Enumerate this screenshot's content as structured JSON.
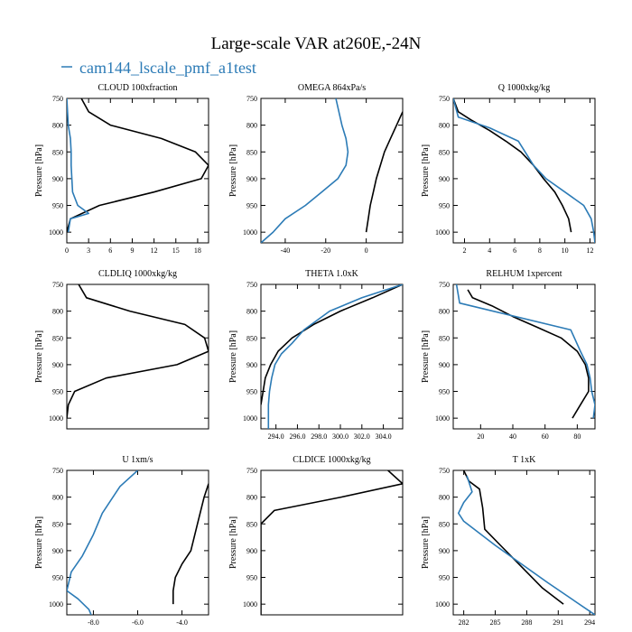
{
  "figure": {
    "title": "Large-scale VAR at260E,-24N",
    "legend_label": "cam144_lscale_pmf_a1test",
    "legend_color": "#2c7bb6",
    "ref_color": "#000000",
    "ylabel": "Pressure [hPa]",
    "yticks": [
      750,
      800,
      850,
      900,
      950,
      1000
    ]
  },
  "chart_data": [
    {
      "type": "line",
      "title": "CLOUD  100xfraction",
      "xlim": [
        0,
        19.5
      ],
      "ylim": [
        750,
        1020
      ],
      "xticks": [
        {
          "v": 0,
          "t": "0"
        },
        {
          "v": 3,
          "t": "3"
        },
        {
          "v": 6,
          "t": "6"
        },
        {
          "v": 9,
          "t": "9"
        },
        {
          "v": 12,
          "t": "12"
        },
        {
          "v": 15,
          "t": "15"
        },
        {
          "v": 18,
          "t": "18"
        }
      ],
      "series": [
        {
          "color": "#000000",
          "points": [
            [
              2,
              750
            ],
            [
              3,
              775
            ],
            [
              6,
              800
            ],
            [
              13,
              825
            ],
            [
              17.7,
              850
            ],
            [
              19.5,
              875
            ],
            [
              18.5,
              900
            ],
            [
              12,
              925
            ],
            [
              4.5,
              950
            ],
            [
              0.5,
              975
            ],
            [
              0,
              1000
            ]
          ]
        },
        {
          "color": "#2c7bb6",
          "points": [
            [
              0,
              750
            ],
            [
              0.2,
              800
            ],
            [
              0.5,
              825
            ],
            [
              0.6,
              850
            ],
            [
              0.6,
              875
            ],
            [
              0.7,
              900
            ],
            [
              0.8,
              925
            ],
            [
              1.5,
              950
            ],
            [
              3,
              965
            ],
            [
              0.5,
              975
            ],
            [
              0.2,
              1000
            ]
          ]
        }
      ]
    },
    {
      "type": "line",
      "title": "OMEGA  864xPa/s",
      "xlim": [
        -52,
        18
      ],
      "ylim": [
        750,
        1020
      ],
      "xticks": [
        {
          "v": -40,
          "t": "-40"
        },
        {
          "v": -20,
          "t": "-20"
        },
        {
          "v": 0,
          "t": "0"
        }
      ],
      "series": [
        {
          "color": "#000000",
          "points": [
            [
              18,
              775
            ],
            [
              15,
              800
            ],
            [
              12,
              825
            ],
            [
              9,
              850
            ],
            [
              7,
              875
            ],
            [
              5,
              900
            ],
            [
              3.5,
              925
            ],
            [
              2,
              950
            ],
            [
              1,
              975
            ],
            [
              0,
              1000
            ]
          ]
        },
        {
          "color": "#2c7bb6",
          "points": [
            [
              -15,
              750
            ],
            [
              -12,
              800
            ],
            [
              -10,
              825
            ],
            [
              -9,
              850
            ],
            [
              -10,
              875
            ],
            [
              -14,
              900
            ],
            [
              -22,
              925
            ],
            [
              -30,
              950
            ],
            [
              -40,
              975
            ],
            [
              -46,
              1000
            ],
            [
              -52,
              1020
            ]
          ]
        }
      ]
    },
    {
      "type": "line",
      "title": "Q  1000xkg/kg",
      "xlim": [
        1.1,
        12.4
      ],
      "ylim": [
        750,
        1020
      ],
      "xticks": [
        {
          "v": 2,
          "t": "2"
        },
        {
          "v": 4,
          "t": "4"
        },
        {
          "v": 6,
          "t": "6"
        },
        {
          "v": 8,
          "t": "8"
        },
        {
          "v": 10,
          "t": "10"
        },
        {
          "v": 12,
          "t": "12"
        }
      ],
      "series": [
        {
          "color": "#000000",
          "points": [
            [
              1.1,
              750
            ],
            [
              1.5,
              775
            ],
            [
              2.5,
              790
            ],
            [
              4,
              810
            ],
            [
              5.3,
              830
            ],
            [
              6.5,
              850
            ],
            [
              7.5,
              875
            ],
            [
              8.3,
              900
            ],
            [
              9.2,
              925
            ],
            [
              9.8,
              950
            ],
            [
              10.3,
              975
            ],
            [
              10.5,
              1000
            ]
          ]
        },
        {
          "color": "#2c7bb6",
          "points": [
            [
              1.1,
              750
            ],
            [
              1.5,
              785
            ],
            [
              4,
              805
            ],
            [
              6.3,
              830
            ],
            [
              7.5,
              875
            ],
            [
              8.5,
              900
            ],
            [
              10,
              925
            ],
            [
              11.5,
              950
            ],
            [
              12.1,
              975
            ],
            [
              12.3,
              1000
            ],
            [
              12.4,
              1020
            ]
          ]
        }
      ]
    },
    {
      "type": "line",
      "title": "CLDLIQ  1000xkg/kg",
      "xlim": [
        0,
        0.18
      ],
      "ylim": [
        750,
        1020
      ],
      "xticks": [],
      "series": [
        {
          "color": "#000000",
          "points": [
            [
              0.015,
              750
            ],
            [
              0.025,
              775
            ],
            [
              0.08,
              800
            ],
            [
              0.15,
              825
            ],
            [
              0.175,
              850
            ],
            [
              0.18,
              875
            ],
            [
              0.14,
              900
            ],
            [
              0.05,
              925
            ],
            [
              0.01,
              950
            ],
            [
              0.002,
              975
            ],
            [
              0,
              1000
            ]
          ]
        }
      ]
    },
    {
      "type": "line",
      "title": "THETA  1.0xK",
      "xlim": [
        292.6,
        305.8
      ],
      "ylim": [
        750,
        1020
      ],
      "xticks": [
        {
          "v": 294,
          "t": "294.0"
        },
        {
          "v": 296,
          "t": "296.0"
        },
        {
          "v": 298,
          "t": "298.0"
        },
        {
          "v": 300,
          "t": "300.0"
        },
        {
          "v": 302,
          "t": "302.0"
        },
        {
          "v": 304,
          "t": "304.0"
        }
      ],
      "series": [
        {
          "color": "#000000",
          "points": [
            [
              305.8,
              750
            ],
            [
              303,
              775
            ],
            [
              300,
              800
            ],
            [
              297.5,
              825
            ],
            [
              295.5,
              850
            ],
            [
              294.2,
              875
            ],
            [
              293.5,
              900
            ],
            [
              293,
              925
            ],
            [
              292.8,
              950
            ],
            [
              292.6,
              975
            ]
          ]
        },
        {
          "color": "#2c7bb6",
          "points": [
            [
              305.8,
              750
            ],
            [
              302,
              775
            ],
            [
              299,
              800
            ],
            [
              296.6,
              835
            ],
            [
              295.5,
              860
            ],
            [
              294.5,
              880
            ],
            [
              293.9,
              900
            ],
            [
              293.6,
              925
            ],
            [
              293.4,
              950
            ],
            [
              293.3,
              975
            ],
            [
              293.3,
              1020
            ]
          ]
        }
      ]
    },
    {
      "type": "line",
      "title": "RELHUM  1xpercent",
      "xlim": [
        3,
        91
      ],
      "ylim": [
        750,
        1020
      ],
      "xticks": [
        {
          "v": 20,
          "t": "20"
        },
        {
          "v": 40,
          "t": "40"
        },
        {
          "v": 60,
          "t": "60"
        },
        {
          "v": 80,
          "t": "80"
        }
      ],
      "series": [
        {
          "color": "#000000",
          "points": [
            [
              12,
              760
            ],
            [
              15,
              775
            ],
            [
              27,
              790
            ],
            [
              40,
              810
            ],
            [
              55,
              830
            ],
            [
              70,
              850
            ],
            [
              80,
              875
            ],
            [
              85,
              900
            ],
            [
              87,
              925
            ],
            [
              87,
              950
            ],
            [
              82,
              975
            ],
            [
              77,
              1000
            ]
          ]
        },
        {
          "color": "#2c7bb6",
          "points": [
            [
              5,
              750
            ],
            [
              7,
              785
            ],
            [
              76,
              835
            ],
            [
              82,
              875
            ],
            [
              86,
              900
            ],
            [
              88,
              925
            ],
            [
              89,
              950
            ],
            [
              91,
              975
            ],
            [
              90,
              1000
            ]
          ]
        }
      ]
    },
    {
      "type": "line",
      "title": "U  1xm/s",
      "xlim": [
        -9.2,
        -2.8
      ],
      "ylim": [
        750,
        1020
      ],
      "xticks": [
        {
          "v": -8,
          "t": "-8.0"
        },
        {
          "v": -6,
          "t": "-6.0"
        },
        {
          "v": -4,
          "t": "-4.0"
        }
      ],
      "series": [
        {
          "color": "#000000",
          "points": [
            [
              -2.8,
              775
            ],
            [
              -3,
              800
            ],
            [
              -3.3,
              850
            ],
            [
              -3.6,
              900
            ],
            [
              -4,
              925
            ],
            [
              -4.3,
              950
            ],
            [
              -4.4,
              975
            ],
            [
              -4.4,
              1000
            ]
          ]
        },
        {
          "color": "#2c7bb6",
          "points": [
            [
              -6,
              750
            ],
            [
              -6.8,
              780
            ],
            [
              -7.6,
              830
            ],
            [
              -8,
              870
            ],
            [
              -8.5,
              910
            ],
            [
              -9,
              940
            ],
            [
              -9.2,
              975
            ],
            [
              -8.7,
              990
            ],
            [
              -8.2,
              1010
            ],
            [
              -8.1,
              1020
            ]
          ]
        }
      ]
    },
    {
      "type": "line",
      "title": "CLDICE  1000xkg/kg",
      "xlim": [
        0,
        0.0106
      ],
      "ylim": [
        750,
        1020
      ],
      "xticks": [],
      "series": [
        {
          "color": "#000000",
          "points": [
            [
              0.0095,
              750
            ],
            [
              0.0106,
              775
            ],
            [
              0.006,
              800
            ],
            [
              0.001,
              825
            ],
            [
              0,
              850
            ],
            [
              0,
              1020
            ]
          ]
        }
      ]
    },
    {
      "type": "line",
      "title": "T  1xK",
      "xlim": [
        281,
        294.5
      ],
      "ylim": [
        750,
        1020
      ],
      "xticks": [
        {
          "v": 282,
          "t": "282"
        },
        {
          "v": 285,
          "t": "285"
        },
        {
          "v": 288,
          "t": "288"
        },
        {
          "v": 291,
          "t": "291"
        },
        {
          "v": 294,
          "t": "294"
        }
      ],
      "series": [
        {
          "color": "#000000",
          "points": [
            [
              282,
              750
            ],
            [
              282.5,
              770
            ],
            [
              283.5,
              785
            ],
            [
              283.8,
              820
            ],
            [
              284,
              860
            ],
            [
              285.5,
              890
            ],
            [
              287.5,
              930
            ],
            [
              289.5,
              970
            ],
            [
              291.5,
              1000
            ]
          ]
        },
        {
          "color": "#2c7bb6",
          "points": [
            [
              282.3,
              760
            ],
            [
              282.8,
              790
            ],
            [
              282,
              810
            ],
            [
              281.5,
              830
            ],
            [
              282,
              845
            ],
            [
              285,
              890
            ],
            [
              290,
              960
            ],
            [
              294.5,
              1020
            ]
          ]
        }
      ]
    }
  ]
}
